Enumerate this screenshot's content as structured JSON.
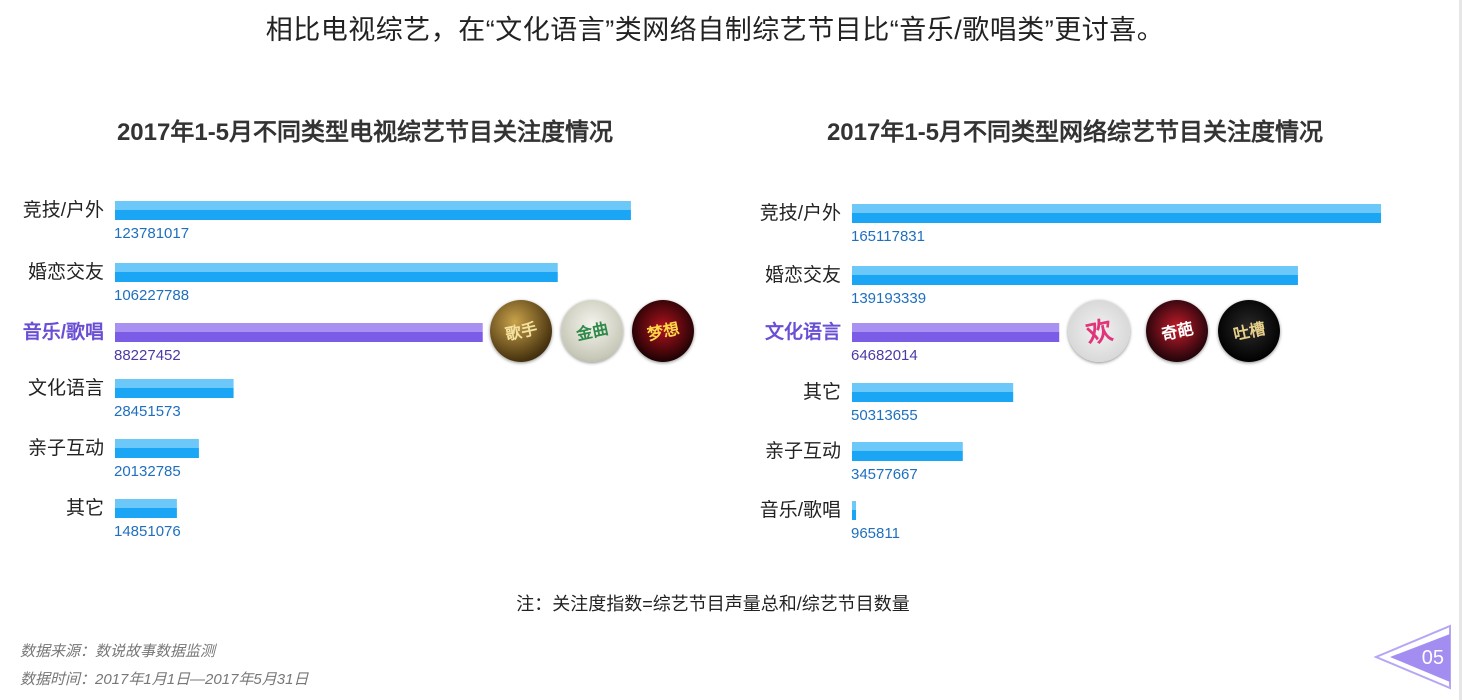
{
  "headline": "相比电视综艺，在“文化语言”类网络自制综艺节目比“音乐/歌唱类”更讨喜。",
  "colors": {
    "bar": "#1aa5f5",
    "bar_top": "#6cc8f9",
    "highlight": "#7a5ce6",
    "highlight_top": "#a891f0"
  },
  "chart_data": [
    {
      "type": "bar",
      "orientation": "horizontal",
      "title": "2017年1-5月不同类型电视综艺节目关注度情况",
      "categories": [
        "竞技/户外",
        "婚恋交友",
        "音乐/歌唱",
        "文化语言",
        "亲子互动",
        "其它"
      ],
      "values": [
        123781017,
        106227788,
        88227452,
        28451573,
        20132785,
        14851076
      ],
      "value_labels": [
        "123781017",
        "106227788",
        "88227452",
        "28451573",
        "20132785",
        "14851076"
      ],
      "highlight": "音乐/歌唱",
      "xlim": [
        0,
        125000000
      ],
      "grid": false,
      "legend": "none",
      "thumbnails": [
        {
          "icon": "show-logo-geshou",
          "text": "歌手"
        },
        {
          "icon": "show-logo-jinqu",
          "text": "金曲"
        },
        {
          "icon": "show-logo-mengxiang",
          "text": "梦想"
        }
      ]
    },
    {
      "type": "bar",
      "orientation": "horizontal",
      "title": "2017年1-5月不同类型网络综艺节目关注度情况",
      "categories": [
        "竞技/户外",
        "婚恋交友",
        "文化语言",
        "其它",
        "亲子互动",
        "音乐/歌唱"
      ],
      "values": [
        165117831,
        139193339,
        64682014,
        50313655,
        34577667,
        965811
      ],
      "value_labels": [
        "165117831",
        "139193339",
        "64682014",
        "50313655",
        "34577667",
        "965811"
      ],
      "highlight": "文化语言",
      "xlim": [
        0,
        165117831
      ],
      "grid": false,
      "legend": "none",
      "thumbnails": [
        {
          "icon": "show-logo-heart",
          "text": "欢"
        },
        {
          "icon": "show-logo-qipa",
          "text": "奇葩"
        },
        {
          "icon": "show-logo-tucao",
          "text": "吐槽"
        }
      ]
    }
  ],
  "note": "注：关注度指数=综艺节目声量总和/综艺节目数量",
  "source": "数据来源：数说故事数据监测",
  "time_range": "数据时间：2017年1月1日—2017年5月31日",
  "page_number": "05"
}
